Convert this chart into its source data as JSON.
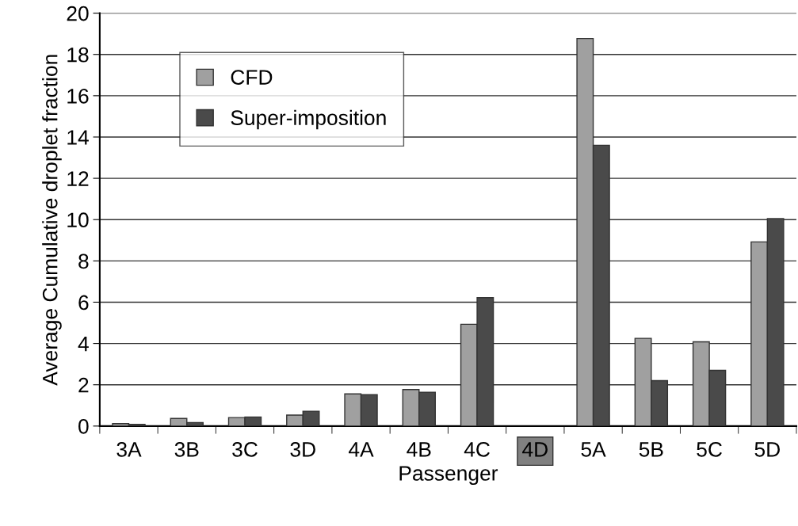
{
  "chart_data": {
    "type": "bar",
    "xlabel": "Passenger",
    "ylabel": "Average Cumulative droplet fraction",
    "categories": [
      "3A",
      "3B",
      "3C",
      "3D",
      "4A",
      "4B",
      "4C",
      "4D",
      "5A",
      "5B",
      "5C",
      "5D"
    ],
    "series": [
      {
        "name": "CFD",
        "color": "#a0a0a0",
        "values": [
          0.12,
          0.37,
          0.41,
          0.53,
          1.56,
          1.77,
          4.93,
          null,
          18.77,
          4.25,
          4.08,
          8.92
        ]
      },
      {
        "name": "Super-imposition",
        "color": "#4a4a4a",
        "values": [
          0.08,
          0.17,
          0.44,
          0.72,
          1.52,
          1.64,
          6.22,
          null,
          13.6,
          2.2,
          2.7,
          10.05
        ]
      }
    ],
    "ylim": [
      0,
      20
    ],
    "yticks": [
      0,
      2,
      4,
      6,
      8,
      10,
      12,
      14,
      16,
      18,
      20
    ],
    "grid": "y",
    "legend": "top left"
  }
}
